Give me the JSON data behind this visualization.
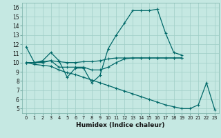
{
  "title": "",
  "xlabel": "Humidex (Indice chaleur)",
  "ylabel": "",
  "bg_color": "#c5e8e2",
  "line_color": "#006868",
  "grid_color": "#9fcec6",
  "xlim": [
    -0.5,
    23.5
  ],
  "ylim": [
    4.5,
    16.5
  ],
  "yticks": [
    5,
    6,
    7,
    8,
    9,
    10,
    11,
    12,
    13,
    14,
    15,
    16
  ],
  "xticks": [
    0,
    1,
    2,
    3,
    4,
    5,
    6,
    7,
    8,
    9,
    10,
    11,
    12,
    13,
    14,
    15,
    16,
    17,
    18,
    19,
    20,
    21,
    22,
    23
  ],
  "series": [
    {
      "x": [
        0,
        1,
        2,
        3,
        4,
        5,
        6,
        7,
        8,
        9,
        10,
        11,
        12,
        13,
        14,
        15,
        16,
        17,
        18,
        19
      ],
      "y": [
        11.7,
        10.0,
        10.2,
        11.1,
        10.2,
        8.4,
        9.4,
        9.4,
        7.8,
        8.6,
        11.5,
        13.0,
        14.3,
        15.65,
        15.65,
        15.65,
        15.8,
        13.2,
        11.1,
        10.8
      ]
    },
    {
      "x": [
        0,
        1,
        2,
        3,
        4,
        5,
        6,
        7,
        8,
        9,
        10,
        11,
        12,
        13,
        14,
        15,
        16,
        17,
        18,
        19
      ],
      "y": [
        10.0,
        10.0,
        10.1,
        10.2,
        10.1,
        10.0,
        10.0,
        10.1,
        10.1,
        10.2,
        10.4,
        10.5,
        10.5,
        10.5,
        10.5,
        10.5,
        10.5,
        10.5,
        10.5,
        10.5
      ]
    },
    {
      "x": [
        0,
        1,
        2,
        3,
        4,
        5,
        6,
        7,
        8,
        9,
        10,
        11,
        12,
        13,
        14,
        15,
        16,
        17,
        18,
        19,
        20,
        21,
        22,
        23
      ],
      "y": [
        10.0,
        9.8,
        9.7,
        9.6,
        9.2,
        8.9,
        8.7,
        8.4,
        8.1,
        7.8,
        7.5,
        7.2,
        6.9,
        6.6,
        6.3,
        6.0,
        5.7,
        5.4,
        5.2,
        5.0,
        5.0,
        5.4,
        7.8,
        4.9
      ]
    },
    {
      "x": [
        0,
        1,
        2,
        3,
        4,
        5,
        6,
        7,
        8,
        9,
        10,
        11,
        12,
        13,
        14,
        15,
        16,
        17,
        18,
        19
      ],
      "y": [
        10.0,
        10.0,
        10.0,
        10.2,
        9.5,
        9.5,
        9.5,
        9.5,
        9.2,
        9.2,
        9.5,
        10.0,
        10.4,
        10.5,
        10.5,
        10.5,
        10.5,
        10.5,
        10.5,
        10.5
      ]
    }
  ]
}
